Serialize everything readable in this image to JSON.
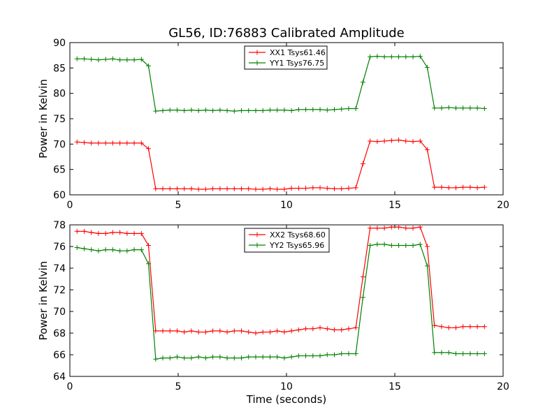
{
  "title": "GL56, ID:76883 Calibrated Amplitude",
  "chart_data": [
    {
      "type": "line",
      "xlabel": "",
      "ylabel": "Power in Kelvin",
      "xlim": [
        0,
        20
      ],
      "ylim": [
        60,
        90
      ],
      "x_ticks": [
        0,
        5,
        10,
        15,
        20
      ],
      "y_ticks": [
        60,
        65,
        70,
        75,
        80,
        85,
        90
      ],
      "grid": false,
      "legend_position": "top-center",
      "x": [
        0.33,
        0.66,
        0.99,
        1.32,
        1.65,
        1.98,
        2.31,
        2.64,
        2.97,
        3.3,
        3.63,
        3.96,
        4.29,
        4.62,
        4.95,
        5.28,
        5.61,
        5.94,
        6.27,
        6.6,
        6.93,
        7.26,
        7.59,
        7.92,
        8.25,
        8.58,
        8.91,
        9.24,
        9.57,
        9.9,
        10.23,
        10.56,
        10.89,
        11.22,
        11.55,
        11.88,
        12.21,
        12.54,
        12.87,
        13.2,
        13.53,
        13.86,
        14.19,
        14.52,
        14.85,
        15.18,
        15.51,
        15.84,
        16.17,
        16.5,
        16.83,
        17.16,
        17.49,
        17.82,
        18.15,
        18.48,
        18.81,
        19.14
      ],
      "series": [
        {
          "name": "XX1 Tsys61.46",
          "color": "#ff0000",
          "values": [
            70.4,
            70.3,
            70.2,
            70.2,
            70.2,
            70.2,
            70.2,
            70.2,
            70.2,
            70.2,
            69.1,
            61.2,
            61.2,
            61.2,
            61.2,
            61.2,
            61.2,
            61.1,
            61.1,
            61.2,
            61.2,
            61.2,
            61.2,
            61.2,
            61.2,
            61.1,
            61.1,
            61.2,
            61.1,
            61.1,
            61.3,
            61.3,
            61.3,
            61.4,
            61.4,
            61.3,
            61.2,
            61.2,
            61.3,
            61.4,
            66.1,
            70.6,
            70.5,
            70.6,
            70.7,
            70.8,
            70.6,
            70.5,
            70.6,
            68.9,
            61.5,
            61.5,
            61.4,
            61.4,
            61.5,
            61.5,
            61.4,
            61.5
          ]
        },
        {
          "name": "YY1 Tsys76.75",
          "color": "#008000",
          "values": [
            86.8,
            86.8,
            86.7,
            86.6,
            86.7,
            86.8,
            86.6,
            86.6,
            86.6,
            86.7,
            85.4,
            76.5,
            76.6,
            76.7,
            76.7,
            76.6,
            76.7,
            76.6,
            76.7,
            76.6,
            76.7,
            76.6,
            76.5,
            76.6,
            76.6,
            76.6,
            76.6,
            76.7,
            76.7,
            76.7,
            76.6,
            76.8,
            76.8,
            76.8,
            76.8,
            76.7,
            76.8,
            76.9,
            77.0,
            77.0,
            82.2,
            87.2,
            87.3,
            87.2,
            87.2,
            87.2,
            87.2,
            87.2,
            87.3,
            85.1,
            77.1,
            77.1,
            77.2,
            77.1,
            77.1,
            77.1,
            77.1,
            77.0
          ]
        }
      ]
    },
    {
      "type": "line",
      "xlabel": "Time (seconds)",
      "ylabel": "Power in Kelvin",
      "xlim": [
        0,
        20
      ],
      "ylim": [
        64,
        78
      ],
      "x_ticks": [
        0,
        5,
        10,
        15,
        20
      ],
      "y_ticks": [
        64,
        66,
        68,
        70,
        72,
        74,
        76,
        78
      ],
      "grid": false,
      "legend_position": "top-center",
      "x": [
        0.33,
        0.66,
        0.99,
        1.32,
        1.65,
        1.98,
        2.31,
        2.64,
        2.97,
        3.3,
        3.63,
        3.96,
        4.29,
        4.62,
        4.95,
        5.28,
        5.61,
        5.94,
        6.27,
        6.6,
        6.93,
        7.26,
        7.59,
        7.92,
        8.25,
        8.58,
        8.91,
        9.24,
        9.57,
        9.9,
        10.23,
        10.56,
        10.89,
        11.22,
        11.55,
        11.88,
        12.21,
        12.54,
        12.87,
        13.2,
        13.53,
        13.86,
        14.19,
        14.52,
        14.85,
        15.18,
        15.51,
        15.84,
        16.17,
        16.5,
        16.83,
        17.16,
        17.49,
        17.82,
        18.15,
        18.48,
        18.81,
        19.14
      ],
      "series": [
        {
          "name": "XX2 Tsys68.60",
          "color": "#ff0000",
          "values": [
            77.4,
            77.4,
            77.3,
            77.2,
            77.2,
            77.3,
            77.3,
            77.2,
            77.2,
            77.2,
            76.1,
            68.2,
            68.2,
            68.2,
            68.2,
            68.1,
            68.2,
            68.1,
            68.1,
            68.2,
            68.2,
            68.1,
            68.2,
            68.2,
            68.1,
            68.0,
            68.1,
            68.1,
            68.2,
            68.1,
            68.2,
            68.3,
            68.4,
            68.4,
            68.5,
            68.4,
            68.3,
            68.3,
            68.4,
            68.5,
            73.2,
            77.7,
            77.7,
            77.7,
            77.8,
            77.8,
            77.7,
            77.7,
            77.8,
            76.0,
            68.7,
            68.6,
            68.5,
            68.5,
            68.6,
            68.6,
            68.6,
            68.6
          ]
        },
        {
          "name": "YY2 Tsys65.96",
          "color": "#008000",
          "values": [
            75.9,
            75.8,
            75.7,
            75.6,
            75.7,
            75.7,
            75.6,
            75.6,
            75.7,
            75.7,
            74.4,
            65.6,
            65.7,
            65.7,
            65.8,
            65.7,
            65.7,
            65.8,
            65.7,
            65.8,
            65.8,
            65.7,
            65.7,
            65.7,
            65.8,
            65.8,
            65.8,
            65.8,
            65.8,
            65.7,
            65.8,
            65.9,
            65.9,
            65.9,
            65.9,
            66.0,
            66.0,
            66.1,
            66.1,
            66.1,
            71.3,
            76.1,
            76.2,
            76.2,
            76.1,
            76.1,
            76.1,
            76.1,
            76.2,
            74.2,
            66.2,
            66.2,
            66.2,
            66.1,
            66.1,
            66.1,
            66.1,
            66.1
          ]
        }
      ]
    }
  ]
}
